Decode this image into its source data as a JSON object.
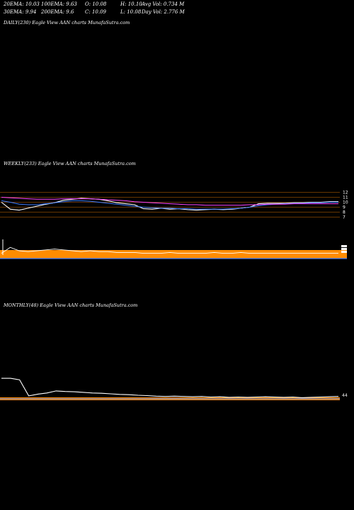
{
  "header": {
    "ema20": "20EMA: 10.03",
    "ema30": "30EMA: 9.94",
    "ema100": "100EMA: 9.63",
    "ema200": "200EMA: 9.6",
    "open": "O: 10.08",
    "close": "C: 10.09",
    "high": "H: 10.10",
    "low": "L: 10.08",
    "avg_vol": "Avg Vol: 0.734  M",
    "day_vol": "Day Vol: 2.776  M"
  },
  "panels": {
    "daily_label": "DAILY(230) Eagle  View  AAN  charts MunafaSutra.com",
    "weekly_label": "WEEKLY(233) Eagle  View  AAN  charts MunafaSutra.com",
    "monthly_label": "MONTHLY(48) Eagle  View  AAN  charts MunafaSutra.com"
  },
  "colors": {
    "background": "#000000",
    "price": "#ffffff",
    "ema_short": "#3b7bff",
    "ema_long": "#ff44ff",
    "levels": "#ff8800",
    "volume_band": "#ff8c00"
  },
  "chart_data": [
    {
      "type": "line",
      "panel": "weekly",
      "price_ticks": [
        "12",
        "11",
        "10",
        "9",
        "8",
        "7"
      ],
      "level_values": [
        12,
        11,
        10,
        9,
        8,
        7
      ],
      "series": [
        {
          "values": [
            10.0,
            8.6,
            8.4,
            8.8,
            9.2,
            9.6,
            9.9,
            10.4,
            10.6,
            10.8,
            10.7,
            10.6,
            10.3,
            9.9,
            9.7,
            9.5,
            8.7,
            8.6,
            8.8,
            8.6,
            8.7,
            8.5,
            8.4,
            8.5,
            8.6,
            8.5,
            8.6,
            8.8,
            9.0,
            9.7,
            9.8,
            9.8,
            9.8,
            9.9,
            9.9,
            10.0,
            10.0,
            10.1,
            10.1
          ]
        },
        {
          "values": [
            10.3,
            10.0,
            9.6,
            9.5,
            9.5,
            9.7,
            9.9,
            10.1,
            10.3,
            10.3,
            10.2,
            10.0,
            9.8,
            9.6,
            9.4,
            9.2,
            9.0,
            8.9,
            8.8,
            8.8,
            8.7,
            8.7,
            8.6,
            8.6,
            8.6,
            8.6,
            8.7,
            8.8,
            9.0,
            9.3,
            9.5,
            9.6,
            9.7,
            9.8,
            9.8,
            9.9,
            9.9,
            10.0,
            10.0
          ]
        },
        {
          "values": [
            11.0,
            10.9,
            10.8,
            10.7,
            10.6,
            10.6,
            10.6,
            10.7,
            10.7,
            10.7,
            10.7,
            10.6,
            10.5,
            10.4,
            10.3,
            10.1,
            10.0,
            9.9,
            9.8,
            9.7,
            9.6,
            9.5,
            9.5,
            9.4,
            9.4,
            9.4,
            9.4,
            9.4,
            9.5,
            9.5,
            9.6,
            9.6,
            9.6,
            9.7,
            9.7,
            9.7,
            9.7,
            9.7,
            9.7
          ]
        }
      ],
      "volume": [
        0.2,
        0.9,
        0.5,
        0.4,
        0.5,
        0.6,
        0.7,
        0.6,
        0.5,
        0.4,
        0.5,
        0.4,
        0.4,
        0.3,
        0.3,
        0.3,
        0.2,
        0.2,
        0.2,
        0.3,
        0.2,
        0.2,
        0.2,
        0.2,
        0.3,
        0.2,
        0.2,
        0.3,
        0.2,
        0.2,
        0.2,
        0.2,
        0.2,
        0.2,
        0.2,
        0.2,
        0.2,
        0.2,
        0.2
      ]
    },
    {
      "type": "line",
      "panel": "monthly",
      "price_ticks": [
        "44"
      ],
      "series": [
        {
          "values": [
            7,
            7,
            6.5,
            1.0,
            1.6,
            2.0,
            2.7,
            2.5,
            2.4,
            2.2,
            2.0,
            1.9,
            1.7,
            1.5,
            1.4,
            1.2,
            1.1,
            0.9,
            0.8,
            0.9,
            0.8,
            0.7,
            0.8,
            0.6,
            0.7,
            0.5,
            0.6,
            0.5,
            0.6,
            0.7,
            0.6,
            0.5,
            0.6,
            0.4,
            0.5,
            0.6,
            0.7,
            0.8
          ]
        }
      ]
    }
  ]
}
